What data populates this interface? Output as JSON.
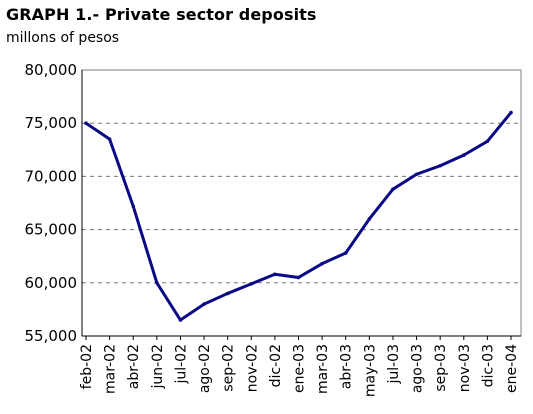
{
  "chart_data": {
    "type": "line",
    "title": "GRAPH 1.- Private sector deposits",
    "subtitle": "millons of pesos",
    "xlabel": "",
    "ylabel": "",
    "ylim": [
      55000,
      80000
    ],
    "y_ticks": [
      55000,
      60000,
      65000,
      70000,
      75000,
      80000
    ],
    "y_tick_labels": [
      "55,000",
      "60,000",
      "65,000",
      "70,000",
      "75,000",
      "80,000"
    ],
    "x_tick_labels": [
      "feb-02",
      "mar-02",
      "abr-02",
      "jun-02",
      "jul-02",
      "ago-02",
      "sep-02",
      "nov-02",
      "dic-02",
      "ene-03",
      "mar-03",
      "abr-03",
      "may-03",
      "jul-03",
      "ago-03",
      "sep-03",
      "nov-03",
      "dic-03",
      "ene-04"
    ],
    "grid": "horizontal dashed",
    "line_color": "#0a0a86",
    "series": [
      {
        "x": [
          "feb-02",
          "mar-02",
          "abr-02",
          "jun-02",
          "jul-02",
          "ago-02",
          "sep-02",
          "nov-02",
          "dic-02",
          "ene-03",
          "mar-03",
          "abr-03",
          "may-03",
          "jul-03",
          "ago-03",
          "sep-03",
          "nov-03",
          "dic-03",
          "ene-04"
        ],
        "values": [
          75000,
          73500,
          67200,
          60000,
          56500,
          58000,
          59000,
          59900,
          60800,
          60500,
          61800,
          62800,
          66000,
          68800,
          70200,
          71000,
          72000,
          73300,
          76000
        ]
      }
    ]
  }
}
